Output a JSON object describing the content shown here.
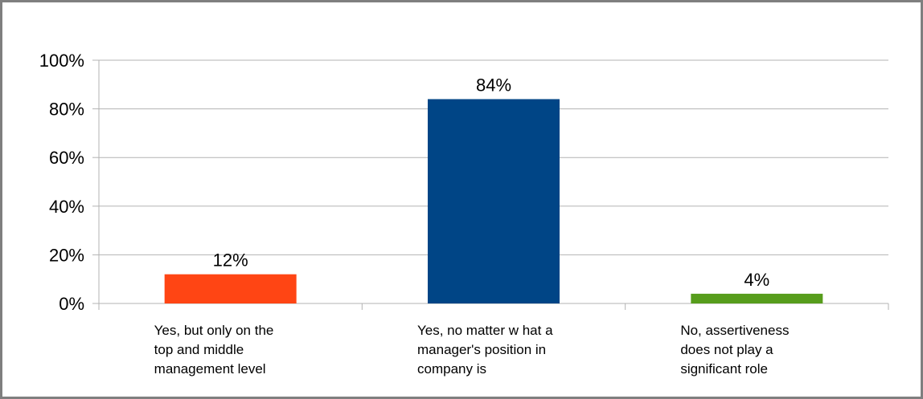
{
  "chart_data": {
    "type": "bar",
    "categories": [
      [
        "Yes, but only on the",
        "top and middle",
        "management level"
      ],
      [
        "Yes, no matter w hat a",
        "manager's position in",
        "company is"
      ],
      [
        "No, assertiveness",
        "does not play a",
        "significant role"
      ]
    ],
    "values": [
      12,
      84,
      4
    ],
    "data_labels": [
      "12%",
      "84%",
      "4%"
    ],
    "colors": [
      "#ff4514",
      "#004586",
      "#579d1c"
    ],
    "ylim": [
      0,
      100
    ],
    "yticks": [
      0,
      20,
      40,
      60,
      80,
      100
    ],
    "ytick_labels": [
      "0%",
      "20%",
      "40%",
      "60%",
      "80%",
      "100%"
    ],
    "grid": true,
    "title": "",
    "xlabel": "",
    "ylabel": ""
  }
}
